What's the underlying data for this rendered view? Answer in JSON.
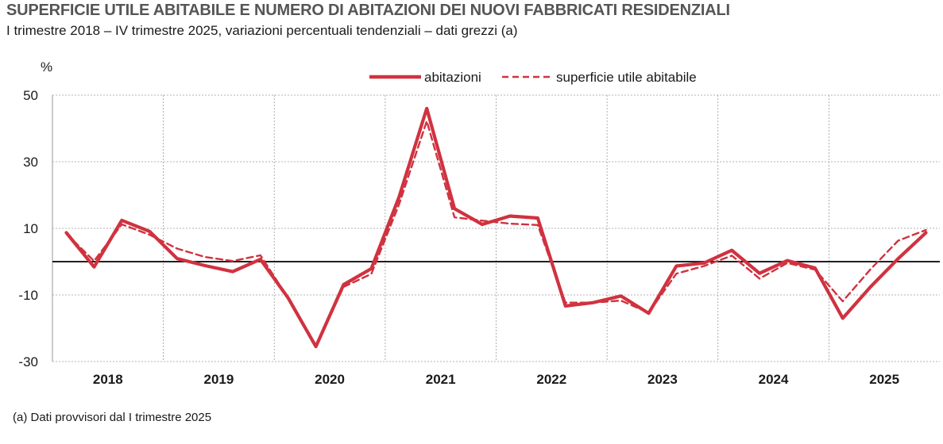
{
  "header": {
    "title": "SUPERFICIE UTILE ABITABILE E NUMERO DI ABITAZIONI DEI NUOVI FABBRICATI RESIDENZIALI",
    "subtitle": "I trimestre 2018 – IV trimestre 2025, variazioni percentuali tendenziali – dati grezzi (a)"
  },
  "footnote": "(a) Dati provvisori dal I trimestre 2025",
  "chart_data": {
    "type": "line",
    "title": "SUPERFICIE UTILE ABITABILE E NUMERO DI ABITAZIONI DEI NUOVI FABBRICATI RESIDENZIALI",
    "ylabel": "%",
    "ylim": [
      -30,
      50
    ],
    "yticks": [
      -30,
      -10,
      10,
      30,
      50
    ],
    "year_labels": [
      "2018",
      "2019",
      "2020",
      "2021",
      "2022",
      "2023",
      "2024",
      "2025"
    ],
    "x": [
      "2018 Q1",
      "2018 Q2",
      "2018 Q3",
      "2018 Q4",
      "2019 Q1",
      "2019 Q2",
      "2019 Q3",
      "2019 Q4",
      "2020 Q1",
      "2020 Q2",
      "2020 Q3",
      "2020 Q4",
      "2021 Q1",
      "2021 Q2",
      "2021 Q3",
      "2021 Q4",
      "2022 Q1",
      "2022 Q2",
      "2022 Q3",
      "2022 Q4",
      "2023 Q1",
      "2023 Q2",
      "2023 Q3",
      "2023 Q4",
      "2024 Q1",
      "2024 Q2",
      "2024 Q3",
      "2024 Q4",
      "2025 Q1",
      "2025 Q2",
      "2025 Q3",
      "2025 Q4"
    ],
    "series": [
      {
        "name": "abitazioni",
        "style": "solid",
        "color": "#d0323f",
        "values": [
          8.7,
          -1.6,
          12.4,
          9.1,
          0.9,
          -1.2,
          -3.0,
          0.7,
          -10.9,
          -25.5,
          -6.9,
          -2.1,
          19.4,
          46.0,
          15.9,
          11.2,
          13.7,
          13.1,
          -13.3,
          -12.3,
          -10.3,
          -15.5,
          -1.3,
          -0.4,
          3.4,
          -3.5,
          0.3,
          -1.9,
          -17.0,
          -7.6,
          0.9,
          8.7
        ]
      },
      {
        "name": "superficie utile abitabile",
        "style": "dashed",
        "color": "#d0323f",
        "values": [
          8.4,
          0.2,
          11.2,
          8.1,
          3.9,
          1.4,
          0.2,
          1.9,
          -10.9,
          -25.3,
          -7.6,
          -3.7,
          17.2,
          42.2,
          13.3,
          12.3,
          11.4,
          11.0,
          -12.3,
          -12.3,
          -11.7,
          -15.3,
          -3.6,
          -1.3,
          1.8,
          -5.1,
          -0.4,
          -2.4,
          -11.9,
          -2.3,
          6.3,
          9.5
        ]
      }
    ],
    "grid": true,
    "legend": "top",
    "zero_line": true
  }
}
